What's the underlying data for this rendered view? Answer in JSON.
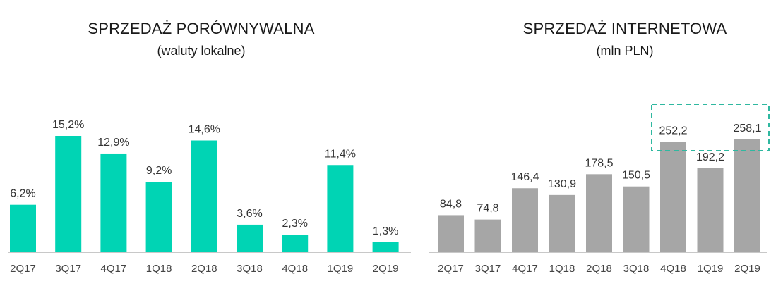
{
  "chart_data": [
    {
      "type": "bar",
      "title": "SPRZEDAŻ PORÓWNYWALNA",
      "subtitle": "(waluty lokalne)",
      "categories": [
        "2Q17",
        "3Q17",
        "4Q17",
        "1Q18",
        "2Q18",
        "3Q18",
        "4Q18",
        "1Q19",
        "2Q19"
      ],
      "values": [
        6.2,
        15.2,
        12.9,
        9.2,
        14.6,
        3.6,
        2.3,
        11.4,
        1.3
      ],
      "value_labels": [
        "6,2%",
        "15,2%",
        "12,9%",
        "9,2%",
        "14,6%",
        "3,6%",
        "2,3%",
        "11,4%",
        "1,3%"
      ],
      "unit": "%",
      "bar_color": "#00d4b4",
      "ylim": [
        0,
        18
      ],
      "grid": false
    },
    {
      "type": "bar",
      "title": "SPRZEDAŻ INTERNETOWA",
      "subtitle": "(mln PLN)",
      "categories": [
        "2Q17",
        "3Q17",
        "4Q17",
        "1Q18",
        "2Q18",
        "3Q18",
        "4Q18",
        "1Q19",
        "2Q19"
      ],
      "values": [
        84.8,
        74.8,
        146.4,
        130.9,
        178.5,
        150.5,
        252.2,
        192.2,
        258.1
      ],
      "value_labels": [
        "84,8",
        "74,8",
        "146,4",
        "130,9",
        "178,5",
        "150,5",
        "252,2",
        "192,2",
        "258,1"
      ],
      "unit": "mln PLN",
      "bar_color": "#a6a6a6",
      "highlight_color": "#2fb8a0",
      "highlight_categories": [
        "4Q18",
        "1Q19",
        "2Q19"
      ],
      "ylim": [
        0,
        300
      ],
      "grid": false
    }
  ]
}
